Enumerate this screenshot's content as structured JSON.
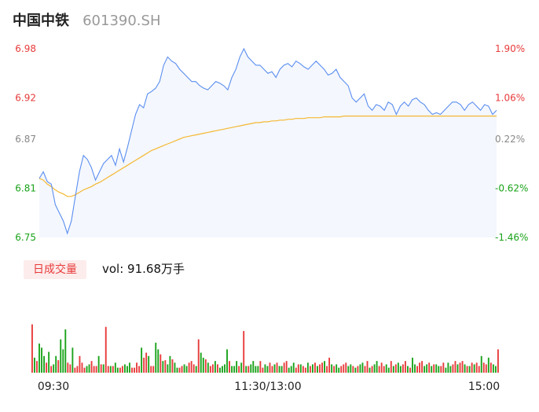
{
  "header": {
    "name": "中国中铁",
    "code": "601390.SH"
  },
  "volume_panel": {
    "tab_label": "日成交量",
    "readout": "vol: 91.68万手"
  },
  "colors": {
    "price_line": "#5a8ef0",
    "avg_line": "#f5b833",
    "up": "#e83a3a",
    "down": "#1aa31a",
    "neutral_axis": "#888888",
    "area_fill": "#f4f7fd"
  },
  "chart_data": [
    {
      "type": "line",
      "title": "",
      "xlabel": "",
      "ylabel": "",
      "grid": false,
      "ylim": [
        6.75,
        6.98
      ],
      "y_ticks_left": [
        {
          "label": "6.98",
          "value": 6.98,
          "tone": "up"
        },
        {
          "label": "6.92",
          "value": 6.92,
          "tone": "up"
        },
        {
          "label": "6.87",
          "value": 6.87,
          "tone": "flat"
        },
        {
          "label": "6.81",
          "value": 6.81,
          "tone": "down"
        },
        {
          "label": "6.75",
          "value": 6.75,
          "tone": "down"
        }
      ],
      "y_ticks_right": [
        {
          "label": "1.90%",
          "tone": "up"
        },
        {
          "label": "1.06%",
          "tone": "up"
        },
        {
          "label": "0.22%",
          "tone": "flat"
        },
        {
          "label": "-0.62%",
          "tone": "down"
        },
        {
          "label": "-1.46%",
          "tone": "down"
        }
      ],
      "x_tick_labels": [
        "09:30",
        "11:30/13:00",
        "15:00"
      ],
      "series": [
        {
          "role": "price",
          "values": [
            6.822,
            6.83,
            6.818,
            6.815,
            6.79,
            6.78,
            6.77,
            6.755,
            6.77,
            6.8,
            6.83,
            6.85,
            6.845,
            6.835,
            6.82,
            6.83,
            6.84,
            6.845,
            6.85,
            6.838,
            6.858,
            6.842,
            6.86,
            6.88,
            6.9,
            6.912,
            6.908,
            6.925,
            6.928,
            6.932,
            6.94,
            6.96,
            6.97,
            6.965,
            6.962,
            6.955,
            6.95,
            6.945,
            6.94,
            6.94,
            6.935,
            6.932,
            6.93,
            6.935,
            6.94,
            6.938,
            6.935,
            6.93,
            6.945,
            6.955,
            6.97,
            6.98,
            6.97,
            6.965,
            6.96,
            6.96,
            6.955,
            6.95,
            6.952,
            6.945,
            6.955,
            6.96,
            6.962,
            6.958,
            6.965,
            6.962,
            6.958,
            6.955,
            6.96,
            6.965,
            6.96,
            6.955,
            6.948,
            6.95,
            6.955,
            6.945,
            6.94,
            6.935,
            6.92,
            6.915,
            6.92,
            6.925,
            6.91,
            6.905,
            6.912,
            6.91,
            6.905,
            6.915,
            6.912,
            6.9,
            6.91,
            6.915,
            6.91,
            6.918,
            6.92,
            6.915,
            6.912,
            6.905,
            6.9,
            6.902,
            6.9,
            6.905,
            6.91,
            6.915,
            6.915,
            6.912,
            6.905,
            6.912,
            6.915,
            6.91,
            6.905,
            6.912,
            6.91,
            6.9,
            6.905
          ]
        },
        {
          "role": "average",
          "values": [
            6.822,
            6.82,
            6.815,
            6.812,
            6.808,
            6.805,
            6.803,
            6.8,
            6.8,
            6.802,
            6.805,
            6.808,
            6.81,
            6.812,
            6.815,
            6.817,
            6.82,
            6.823,
            6.826,
            6.829,
            6.832,
            6.835,
            6.838,
            6.841,
            6.844,
            6.847,
            6.85,
            6.853,
            6.856,
            6.858,
            6.86,
            6.862,
            6.864,
            6.866,
            6.868,
            6.87,
            6.872,
            6.873,
            6.874,
            6.875,
            6.876,
            6.877,
            6.878,
            6.879,
            6.88,
            6.881,
            6.882,
            6.883,
            6.884,
            6.885,
            6.886,
            6.887,
            6.888,
            6.889,
            6.89,
            6.89,
            6.891,
            6.891,
            6.892,
            6.892,
            6.893,
            6.893,
            6.894,
            6.894,
            6.895,
            6.895,
            6.895,
            6.896,
            6.896,
            6.896,
            6.896,
            6.897,
            6.897,
            6.897,
            6.897,
            6.897,
            6.898,
            6.898,
            6.898,
            6.898,
            6.898,
            6.898,
            6.898,
            6.898,
            6.898,
            6.898,
            6.898,
            6.898,
            6.898,
            6.898,
            6.898,
            6.898,
            6.898,
            6.898,
            6.898,
            6.898,
            6.898,
            6.898,
            6.898,
            6.898,
            6.898,
            6.898,
            6.898,
            6.898,
            6.898,
            6.898,
            6.898,
            6.898,
            6.898,
            6.898,
            6.898,
            6.898,
            6.898,
            6.898,
            6.898
          ]
        }
      ]
    },
    {
      "type": "bar",
      "title": "",
      "xlabel": "",
      "ylabel": "",
      "grid": false,
      "unit": "relative volume",
      "ylim": [
        0,
        100
      ],
      "x_tick_labels": [
        "09:30",
        "11:30/13:00",
        "15:00"
      ],
      "values": [
        58,
        18,
        14,
        35,
        30,
        20,
        12,
        25,
        8,
        10,
        20,
        15,
        40,
        28,
        52,
        12,
        10,
        30,
        6,
        8,
        20,
        12,
        6,
        8,
        10,
        14,
        8,
        8,
        20,
        10,
        10,
        55,
        8,
        8,
        8,
        12,
        6,
        6,
        8,
        10,
        8,
        12,
        6,
        6,
        12,
        8,
        30,
        18,
        24,
        20,
        8,
        8,
        36,
        28,
        22,
        14,
        15,
        10,
        20,
        16,
        12,
        6,
        6,
        8,
        10,
        8,
        12,
        14,
        10,
        8,
        40,
        24,
        18,
        16,
        12,
        8,
        10,
        14,
        10,
        6,
        8,
        10,
        28,
        14,
        8,
        8,
        14,
        8,
        12,
        50,
        8,
        8,
        10,
        14,
        8,
        8,
        14,
        6,
        10,
        8,
        12,
        8,
        10,
        12,
        8,
        8,
        12,
        14,
        6,
        8,
        12,
        6,
        10,
        10,
        8,
        6,
        12,
        8,
        10,
        12,
        8,
        10,
        12,
        14,
        8,
        18,
        10,
        8,
        10,
        6,
        8,
        10,
        12,
        8,
        10,
        8,
        6,
        8,
        10,
        12,
        8,
        14,
        6,
        8,
        10,
        14,
        8,
        12,
        8,
        10,
        6,
        14,
        8,
        10,
        12,
        8,
        10,
        14,
        8,
        6,
        18,
        10,
        8,
        12,
        14,
        8,
        10,
        12,
        8,
        10,
        10,
        8,
        8,
        12,
        6,
        12,
        8,
        10,
        14,
        10,
        12,
        14,
        10,
        8,
        8,
        12,
        10,
        12,
        8,
        20,
        12,
        10,
        18,
        12,
        10,
        8,
        28
      ],
      "directions": [
        "u",
        "d",
        "u",
        "d",
        "d",
        "d",
        "u",
        "d",
        "u",
        "d",
        "d",
        "u",
        "d",
        "d",
        "d",
        "u",
        "u",
        "d",
        "u",
        "u",
        "u",
        "u",
        "u",
        "d",
        "d",
        "u",
        "u",
        "u",
        "d",
        "u",
        "d",
        "u",
        "u",
        "d",
        "u",
        "d",
        "d",
        "u",
        "u",
        "d",
        "d",
        "d",
        "u",
        "u",
        "u",
        "u",
        "d",
        "u",
        "u",
        "d",
        "u",
        "u",
        "d",
        "d",
        "u",
        "d",
        "u",
        "d",
        "d",
        "u",
        "d",
        "d",
        "u",
        "u",
        "d",
        "d",
        "u",
        "u",
        "u",
        "d",
        "u",
        "d",
        "d",
        "u",
        "d",
        "u",
        "u",
        "d",
        "u",
        "d",
        "d",
        "d",
        "d",
        "u",
        "d",
        "d",
        "d",
        "u",
        "d",
        "u",
        "d",
        "u",
        "d",
        "d",
        "d",
        "d",
        "u",
        "u",
        "d",
        "d",
        "u",
        "u",
        "d",
        "u",
        "d",
        "d",
        "u",
        "u",
        "d",
        "d",
        "d",
        "u",
        "u",
        "d",
        "u",
        "u",
        "d",
        "u",
        "d",
        "u",
        "d",
        "u",
        "u",
        "d",
        "u",
        "u",
        "d",
        "u",
        "d",
        "d",
        "u",
        "u",
        "u",
        "d",
        "d",
        "u",
        "d",
        "u",
        "d",
        "d",
        "u",
        "u",
        "d",
        "u",
        "d",
        "d",
        "u",
        "u",
        "u",
        "d",
        "d",
        "u",
        "d",
        "u",
        "d",
        "d",
        "u",
        "u",
        "d",
        "u",
        "d",
        "d",
        "u",
        "u",
        "u",
        "d",
        "d",
        "u",
        "d",
        "u",
        "d",
        "d",
        "u",
        "u",
        "d",
        "d",
        "d",
        "u",
        "u",
        "d",
        "u",
        "u",
        "d",
        "u",
        "d",
        "u",
        "d",
        "u",
        "u",
        "d",
        "u",
        "u",
        "d",
        "u",
        "d",
        "d",
        "u"
      ]
    }
  ]
}
